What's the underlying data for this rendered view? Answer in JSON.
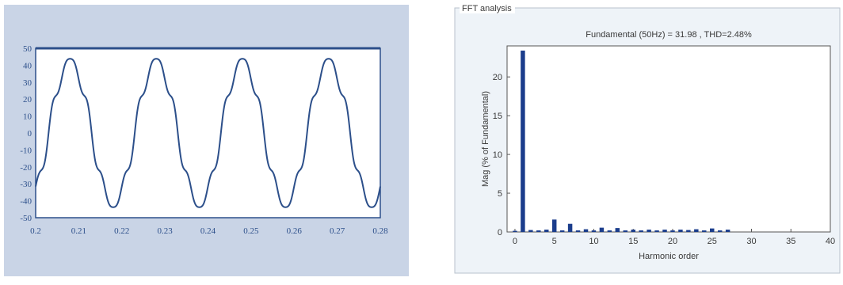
{
  "chart_data": [
    {
      "type": "line",
      "title": "",
      "xlabel": "",
      "ylabel": "",
      "xlim": [
        0.2,
        0.28
      ],
      "ylim": [
        -50,
        50
      ],
      "xticks": [
        "0.2",
        "0.21",
        "0.22",
        "0.23",
        "0.24",
        "0.25",
        "0.26",
        "0.27",
        "0.28"
      ],
      "yticks": [
        "50",
        "40",
        "30",
        "20",
        "10",
        "0",
        "-10",
        "-20",
        "-30",
        "-40",
        "-50"
      ],
      "series": [
        {
          "name": "",
          "frequency_hz": 50,
          "amplitude": 42.5,
          "first_peak_x": 0.208,
          "distortion": [
            {
              "harmonic": 5,
              "amplitude": 3.5
            },
            {
              "harmonic": 7,
              "amplitude": 2.2
            }
          ]
        }
      ],
      "colors": {
        "panel": "#c9d4e6",
        "plot_bg": "#ffffff",
        "line": "#2c4f8a",
        "frame": "#2c4f8a"
      },
      "grid": false
    },
    {
      "type": "bar",
      "panel_label": "FFT analysis",
      "title": "Fundamental (50Hz) = 31.98 , THD=2.48%",
      "xlabel": "Harmonic order",
      "ylabel": "Mag (% of Fundamental)",
      "xlim": [
        -1,
        40
      ],
      "ylim": [
        0,
        24
      ],
      "xticks": [
        "0",
        "5",
        "10",
        "15",
        "20",
        "25",
        "30",
        "35",
        "40"
      ],
      "yticks": [
        "0",
        "5",
        "10",
        "15",
        "20"
      ],
      "x": [
        0,
        1,
        2,
        3,
        4,
        5,
        6,
        7,
        8,
        9,
        10,
        11,
        12,
        13,
        14,
        15,
        16,
        17,
        18,
        19,
        20,
        21,
        22,
        23,
        24,
        25,
        26,
        27
      ],
      "values": [
        0.15,
        23.4,
        0.25,
        0.2,
        0.3,
        1.6,
        0.2,
        1.05,
        0.2,
        0.35,
        0.2,
        0.55,
        0.2,
        0.5,
        0.2,
        0.3,
        0.2,
        0.3,
        0.2,
        0.3,
        0.2,
        0.3,
        0.25,
        0.35,
        0.2,
        0.45,
        0.2,
        0.3
      ],
      "colors": {
        "bar": "#1b3d8c",
        "panel": "#eef3f8",
        "axis": "#555555",
        "text": "#3a3a3a"
      },
      "grid": false
    }
  ]
}
